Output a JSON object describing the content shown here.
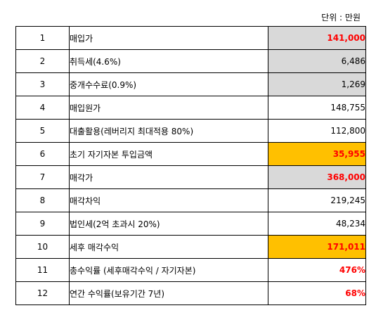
{
  "unit_label": "단위 : 만원",
  "colors": {
    "highlight_grey": "#d9d9d9",
    "highlight_yellow": "#ffc000",
    "emphasis_red": "#ff0000"
  },
  "rows": [
    {
      "no": "1",
      "item": "매입가",
      "value": "141,000"
    },
    {
      "no": "2",
      "item": "취득세(4.6%)",
      "value": "6,486"
    },
    {
      "no": "3",
      "item": "중개수수료(0.9%)",
      "value": "1,269"
    },
    {
      "no": "4",
      "item": "매입원가",
      "value": "148,755"
    },
    {
      "no": "5",
      "item": "대출활용(레버리지 최대적용 80%)",
      "value": "112,800"
    },
    {
      "no": "6",
      "item": "초기 자기자본 투입금액",
      "value": "35,955"
    },
    {
      "no": "7",
      "item": "매각가",
      "value": "368,000"
    },
    {
      "no": "8",
      "item": "매각차익",
      "value": "219,245"
    },
    {
      "no": "9",
      "item": "법인세(2억 초과시 20%)",
      "value": "48,234"
    },
    {
      "no": "10",
      "item": "세후 매각수익",
      "value": "171,011"
    },
    {
      "no": "11",
      "item": "총수익률 (세후매각수익 / 자기자본)",
      "value": "476%"
    },
    {
      "no": "12",
      "item": "연간 수익률(보유기간 7년)",
      "value": "68%"
    }
  ]
}
